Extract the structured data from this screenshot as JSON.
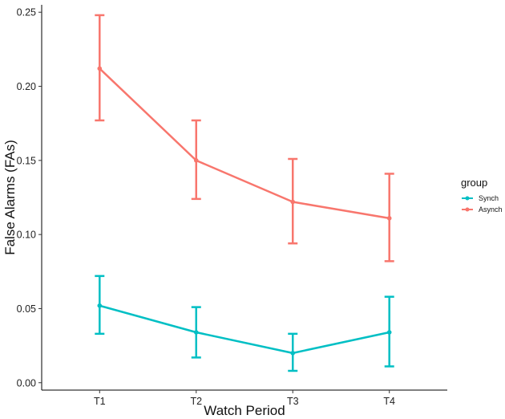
{
  "chart_data": {
    "type": "line",
    "title": "",
    "xlabel": "Watch Period",
    "ylabel": "False Alarms (FAs)",
    "categories": [
      "T1",
      "T2",
      "T3",
      "T4"
    ],
    "ylim": [
      -0.005,
      0.255
    ],
    "yticks": [
      0.0,
      0.05,
      0.1,
      0.15,
      0.2,
      0.25
    ],
    "ytick_labels": [
      "0.00",
      "0.05",
      "0.10",
      "0.15",
      "0.20",
      "0.25"
    ],
    "grid": false,
    "legend": {
      "title": "group",
      "position": "right",
      "entries": [
        "Synch",
        "Asynch"
      ]
    },
    "series": [
      {
        "name": "Synch",
        "color": "#00BFC4",
        "values": [
          0.052,
          0.034,
          0.02,
          0.034
        ],
        "error_lower": [
          0.033,
          0.017,
          0.008,
          0.011
        ],
        "error_upper": [
          0.072,
          0.051,
          0.033,
          0.058
        ]
      },
      {
        "name": "Asynch",
        "color": "#F8766D",
        "values": [
          0.212,
          0.15,
          0.122,
          0.111
        ],
        "error_lower": [
          0.177,
          0.124,
          0.094,
          0.082
        ],
        "error_upper": [
          0.248,
          0.177,
          0.151,
          0.141
        ]
      }
    ]
  }
}
